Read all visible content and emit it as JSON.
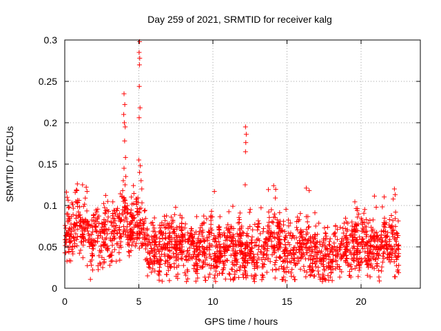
{
  "chart_data": {
    "type": "scatter",
    "title": "Day 259 of 2021, SRMTID for receiver kalg",
    "xlabel": "GPS time / hours",
    "ylabel": "SRMTID / TECUs",
    "xlim": [
      0,
      24
    ],
    "ylim": [
      0,
      0.3
    ],
    "xticks": [
      0,
      5,
      10,
      15,
      20
    ],
    "xtick_labels": [
      "0",
      "5",
      "10",
      "15",
      "20"
    ],
    "yticks": [
      0,
      0.05,
      0.1,
      0.15,
      0.2,
      0.25,
      0.3
    ],
    "ytick_labels": [
      "0",
      "0.05",
      "0.1",
      "0.15",
      "0.2",
      "0.25",
      "0.3"
    ],
    "grid": true,
    "marker": "+",
    "color": "#ff0000",
    "series": [
      {
        "name": "SRMTID",
        "generated_points": 2200,
        "x_range": [
          0.0,
          22.55
        ],
        "level_profile": [
          [
            0.0,
            0.06
          ],
          [
            0.5,
            0.07
          ],
          [
            1.0,
            0.08
          ],
          [
            1.5,
            0.065
          ],
          [
            2.0,
            0.058
          ],
          [
            2.5,
            0.06
          ],
          [
            3.0,
            0.062
          ],
          [
            3.5,
            0.07
          ],
          [
            4.0,
            0.085
          ],
          [
            4.5,
            0.075
          ],
          [
            5.0,
            0.09
          ],
          [
            5.5,
            0.05
          ],
          [
            6.0,
            0.048
          ],
          [
            7.0,
            0.052
          ],
          [
            8.0,
            0.05
          ],
          [
            9.0,
            0.045
          ],
          [
            10.0,
            0.05
          ],
          [
            11.0,
            0.046
          ],
          [
            12.0,
            0.048
          ],
          [
            13.0,
            0.042
          ],
          [
            14.0,
            0.058
          ],
          [
            15.0,
            0.045
          ],
          [
            16.0,
            0.052
          ],
          [
            17.0,
            0.04
          ],
          [
            17.5,
            0.035
          ],
          [
            18.0,
            0.045
          ],
          [
            19.0,
            0.05
          ],
          [
            20.0,
            0.055
          ],
          [
            21.0,
            0.045
          ],
          [
            22.0,
            0.055
          ],
          [
            22.55,
            0.05
          ]
        ],
        "spread": 0.018,
        "outliers": [
          {
            "x": 4.0,
            "y": 0.235
          },
          {
            "x": 4.05,
            "y": 0.222
          },
          {
            "x": 3.98,
            "y": 0.21
          },
          {
            "x": 4.02,
            "y": 0.2
          },
          {
            "x": 4.08,
            "y": 0.195
          },
          {
            "x": 4.04,
            "y": 0.178
          },
          {
            "x": 4.1,
            "y": 0.158
          },
          {
            "x": 4.0,
            "y": 0.145
          },
          {
            "x": 4.12,
            "y": 0.135
          },
          {
            "x": 3.95,
            "y": 0.13
          },
          {
            "x": 4.07,
            "y": 0.125
          },
          {
            "x": 5.05,
            "y": 0.298
          },
          {
            "x": 5.02,
            "y": 0.285
          },
          {
            "x": 5.06,
            "y": 0.278
          },
          {
            "x": 5.04,
            "y": 0.27
          },
          {
            "x": 5.03,
            "y": 0.244
          },
          {
            "x": 5.08,
            "y": 0.218
          },
          {
            "x": 5.02,
            "y": 0.206
          },
          {
            "x": 5.0,
            "y": 0.155
          },
          {
            "x": 5.1,
            "y": 0.148
          },
          {
            "x": 5.05,
            "y": 0.14
          },
          {
            "x": 5.15,
            "y": 0.13
          },
          {
            "x": 5.2,
            "y": 0.12
          },
          {
            "x": 12.2,
            "y": 0.195
          },
          {
            "x": 12.25,
            "y": 0.186
          },
          {
            "x": 12.22,
            "y": 0.176
          },
          {
            "x": 12.2,
            "y": 0.165
          },
          {
            "x": 12.18,
            "y": 0.125
          },
          {
            "x": 14.1,
            "y": 0.124
          },
          {
            "x": 16.3,
            "y": 0.121
          },
          {
            "x": 16.5,
            "y": 0.118
          },
          {
            "x": 22.25,
            "y": 0.12
          },
          {
            "x": 22.3,
            "y": 0.113
          },
          {
            "x": 10.1,
            "y": 0.117
          },
          {
            "x": 0.85,
            "y": 0.126
          },
          {
            "x": 1.2,
            "y": 0.125
          }
        ]
      }
    ]
  }
}
